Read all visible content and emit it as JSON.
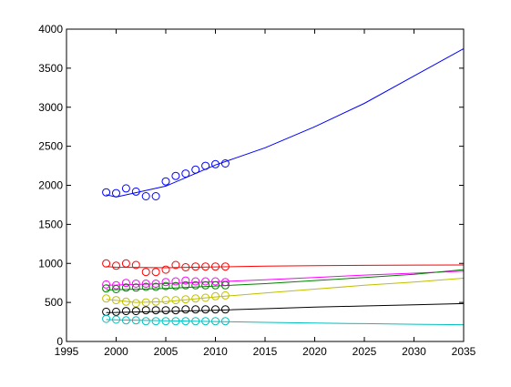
{
  "chart_data": {
    "type": "line",
    "title": "",
    "xlabel": "",
    "ylabel": "",
    "xlim": [
      1995,
      2035
    ],
    "ylim": [
      0,
      4000
    ],
    "xticks": [
      1995,
      2000,
      2005,
      2010,
      2015,
      2020,
      2025,
      2030,
      2035
    ],
    "yticks": [
      0,
      500,
      1000,
      1500,
      2000,
      2500,
      3000,
      3500,
      4000
    ],
    "grid": false,
    "legend": "none",
    "series": [
      {
        "color": "#0000ff",
        "observed_x": [
          1999,
          2000,
          2001,
          2002,
          2003,
          2004,
          2005,
          2006,
          2007,
          2008,
          2009,
          2010,
          2011
        ],
        "observed_y": [
          1910,
          1900,
          1960,
          1920,
          1860,
          1860,
          2050,
          2120,
          2150,
          2200,
          2250,
          2270,
          2280
        ],
        "fit_x": [
          1999,
          2000,
          2005,
          2010,
          2015,
          2020,
          2025,
          2030,
          2035
        ],
        "fit_y": [
          1880,
          1850,
          1990,
          2260,
          2480,
          2750,
          3050,
          3400,
          3750
        ]
      },
      {
        "color": "#ff0000",
        "observed_x": [
          1999,
          2000,
          2001,
          2002,
          2003,
          2004,
          2005,
          2006,
          2007,
          2008,
          2009,
          2010,
          2011
        ],
        "observed_y": [
          1000,
          970,
          1000,
          980,
          890,
          890,
          920,
          980,
          950,
          960,
          960,
          960,
          960
        ],
        "fit_x": [
          1999,
          2000,
          2005,
          2010,
          2015,
          2020,
          2025,
          2030,
          2035
        ],
        "fit_y": [
          960,
          950,
          945,
          955,
          965,
          970,
          975,
          978,
          980
        ]
      },
      {
        "color": "#ff00ff",
        "observed_x": [
          1999,
          2000,
          2001,
          2002,
          2003,
          2004,
          2005,
          2006,
          2007,
          2008,
          2009,
          2010,
          2011
        ],
        "observed_y": [
          730,
          720,
          750,
          740,
          740,
          740,
          760,
          770,
          780,
          770,
          770,
          770,
          760
        ],
        "fit_x": [
          1999,
          2005,
          2010,
          2015,
          2020,
          2025,
          2030,
          2035
        ],
        "fit_y": [
          720,
          740,
          765,
          790,
          820,
          850,
          875,
          900
        ]
      },
      {
        "color": "#008000",
        "observed_x": [
          1999,
          2000,
          2001,
          2002,
          2003,
          2004,
          2005,
          2006,
          2007,
          2008,
          2009,
          2010,
          2011
        ],
        "observed_y": [
          680,
          670,
          690,
          690,
          700,
          700,
          710,
          710,
          720,
          720,
          720,
          720,
          720
        ],
        "fit_x": [
          1999,
          2005,
          2010,
          2015,
          2020,
          2025,
          2030,
          2035
        ],
        "fit_y": [
          660,
          680,
          710,
          740,
          780,
          820,
          860,
          920
        ]
      },
      {
        "color": "#bfbf00",
        "observed_x": [
          1999,
          2000,
          2001,
          2002,
          2003,
          2004,
          2005,
          2006,
          2007,
          2008,
          2009,
          2010,
          2011
        ],
        "observed_y": [
          550,
          530,
          510,
          490,
          500,
          510,
          530,
          530,
          540,
          550,
          560,
          580,
          590
        ],
        "fit_x": [
          1999,
          2002,
          2005,
          2010,
          2015,
          2020,
          2025,
          2030,
          2035
        ],
        "fit_y": [
          540,
          500,
          510,
          570,
          620,
          670,
          720,
          760,
          810
        ]
      },
      {
        "color": "#000000",
        "observed_x": [
          1999,
          2000,
          2001,
          2002,
          2003,
          2004,
          2005,
          2006,
          2007,
          2008,
          2009,
          2010,
          2011
        ],
        "observed_y": [
          380,
          380,
          390,
          390,
          400,
          400,
          400,
          400,
          410,
          410,
          410,
          410,
          410
        ],
        "fit_x": [
          1999,
          2005,
          2010,
          2015,
          2020,
          2025,
          2030,
          2035
        ],
        "fit_y": [
          370,
          385,
          400,
          420,
          440,
          455,
          470,
          485
        ]
      },
      {
        "color": "#00bfbf",
        "observed_x": [
          1999,
          2000,
          2001,
          2002,
          2003,
          2004,
          2005,
          2006,
          2007,
          2008,
          2009,
          2010,
          2011
        ],
        "observed_y": [
          290,
          280,
          270,
          270,
          260,
          260,
          260,
          260,
          260,
          260,
          260,
          260,
          260
        ],
        "fit_x": [
          1999,
          2005,
          2010,
          2015,
          2020,
          2025,
          2030,
          2035
        ],
        "fit_y": [
          280,
          265,
          255,
          245,
          235,
          228,
          220,
          215
        ]
      }
    ]
  }
}
